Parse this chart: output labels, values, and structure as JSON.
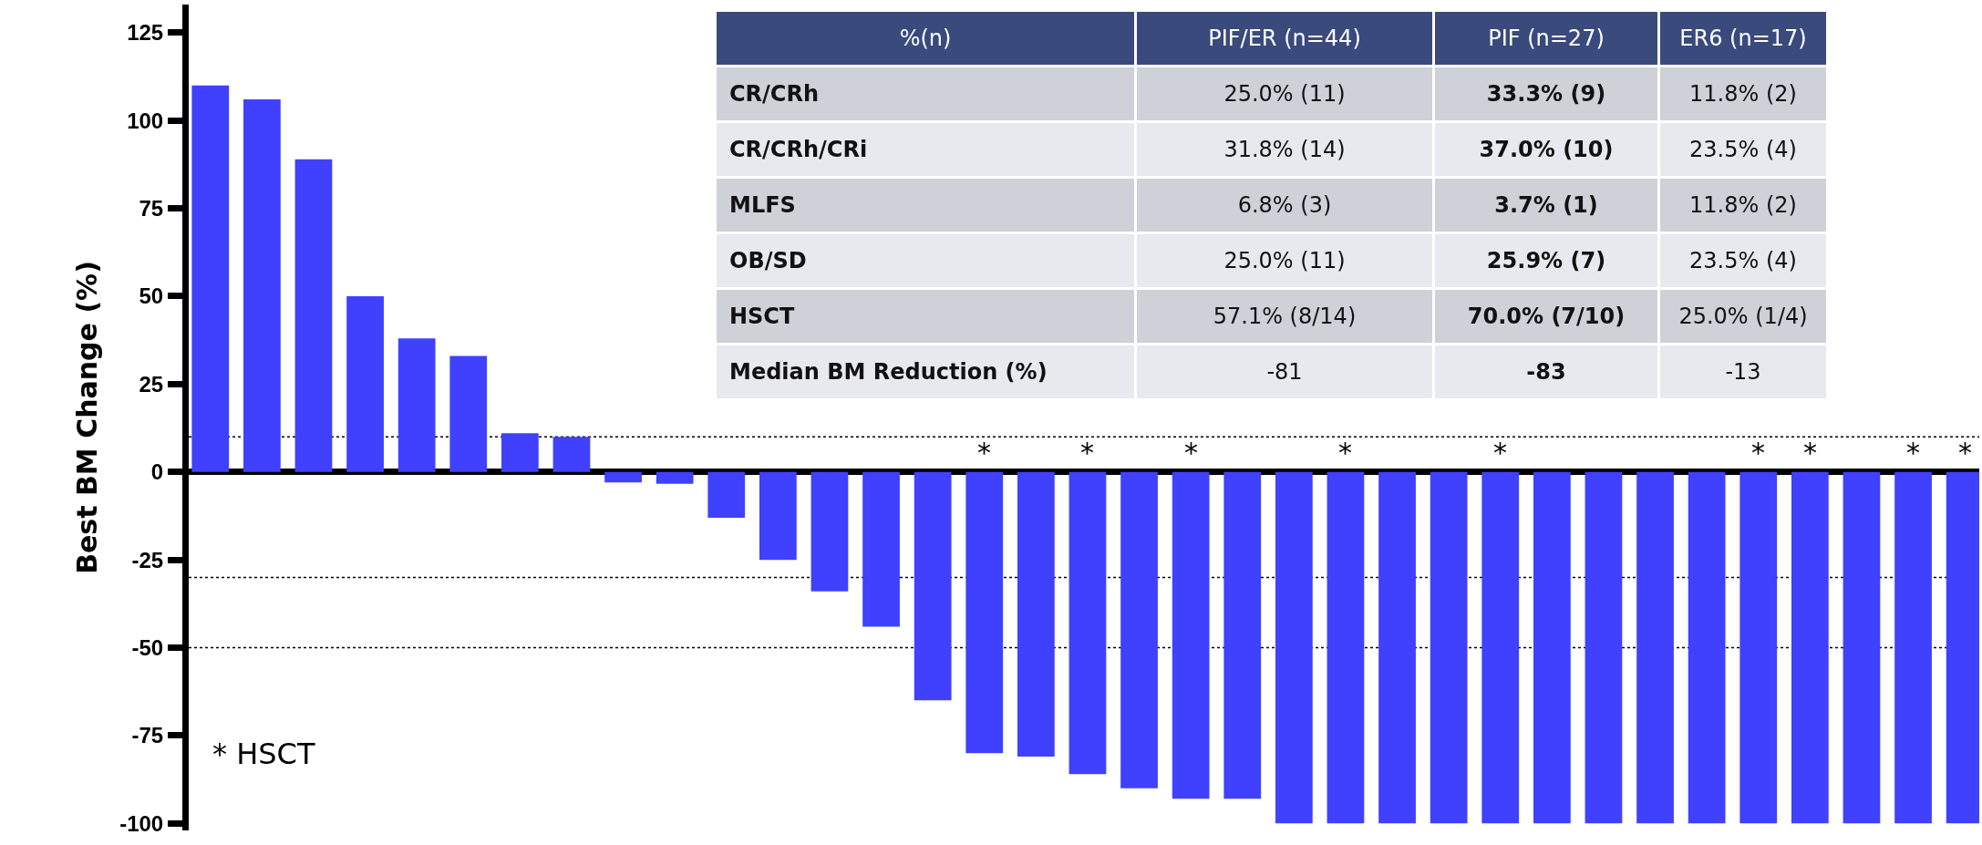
{
  "chart_data": [
    {
      "type": "bar",
      "ylabel": "Best BM Change (%)",
      "color": "#4040ff",
      "tick_labels": "y",
      "categories": [
        null,
        null,
        null,
        null,
        null,
        null,
        null,
        null,
        null,
        null,
        null,
        null,
        null,
        null,
        null,
        null,
        null,
        null,
        null,
        null,
        null,
        null,
        null,
        null,
        null,
        null,
        null,
        null,
        null,
        null,
        null,
        null,
        null,
        null,
        null
      ],
      "values": [
        110,
        106,
        89,
        50,
        38,
        33,
        11,
        10,
        -3,
        -3.4,
        -13,
        -25,
        -34,
        -44,
        -65,
        -80,
        -81,
        -86,
        -90,
        -93,
        -93,
        -100,
        -100,
        -100,
        -100,
        -100,
        -100,
        -100,
        -100,
        -100,
        -100,
        -100,
        -100,
        -100,
        -100
      ],
      "value_labels": [
        null,
        null,
        null,
        null,
        null,
        null,
        null,
        null,
        null,
        null,
        null,
        null,
        null,
        null,
        null,
        "*",
        null,
        "*",
        null,
        "*",
        null,
        null,
        "*",
        null,
        null,
        "*",
        null,
        null,
        null,
        null,
        "*",
        "*",
        null,
        "*",
        "*"
      ],
      "ylim": [
        -102,
        133
      ],
      "yticks": [
        -100,
        -75,
        -50,
        -25,
        0,
        25,
        50,
        75,
        100,
        125
      ],
      "ref_lines": [
        {
          "axis": "y",
          "value": 10,
          "line_style": "dotted",
          "color": "#000000"
        },
        {
          "axis": "y",
          "value": -30,
          "line_style": "dotted",
          "color": "#000000"
        },
        {
          "axis": "y",
          "value": -50,
          "line_style": "dotted",
          "color": "#000000"
        }
      ],
      "annotations": [
        "* HSCT"
      ]
    },
    {
      "type": "other",
      "categories": [
        "%(n)",
        "PIF/ER (n=44)",
        "PIF (n=27)",
        "ER6 (n=17)"
      ],
      "y_categories": [
        "CR/CRh",
        "CR/CRh/CRi",
        "MLFS",
        "OB/SD",
        "HSCT",
        "Median BM Reduction (%)"
      ],
      "cell_labels": [
        [
          "25.0% (11)",
          "33.3% (9)",
          "11.8% (2)"
        ],
        [
          "31.8% (14)",
          "37.0% (10)",
          "23.5% (4)"
        ],
        [
          "6.8% (3)",
          "3.7% (1)",
          "11.8% (2)"
        ],
        [
          "25.0% (11)",
          "25.9% (7)",
          "23.5% (4)"
        ],
        [
          "57.1% (8/14)",
          "70.0% (7/10)",
          "25.0% (1/4)"
        ],
        [
          "-81",
          "-83",
          "-13"
        ]
      ]
    }
  ]
}
